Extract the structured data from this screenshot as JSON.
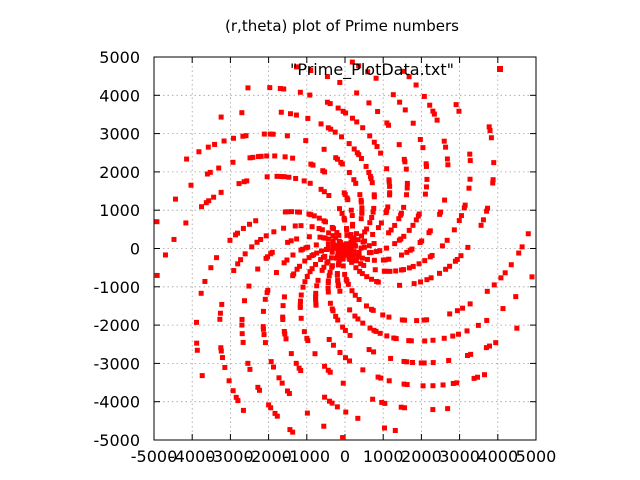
{
  "chart_data": {
    "type": "scatter",
    "title": "(r,theta) plot of Prime numbers",
    "xlabel": "",
    "ylabel": "",
    "xlim": [
      -5000,
      5000
    ],
    "ylim": [
      -5000,
      5000
    ],
    "x_ticks": [
      -5000,
      -4000,
      -3000,
      -2000,
      -1000,
      0,
      1000,
      2000,
      3000,
      4000,
      5000
    ],
    "y_ticks": [
      -5000,
      -4000,
      -3000,
      -2000,
      -1000,
      0,
      1000,
      2000,
      3000,
      4000,
      5000
    ],
    "x_tick_labels": [
      "-5000",
      "-4000",
      "-3000",
      "-2000",
      "-1000",
      "0",
      "1000",
      "2000",
      "3000",
      "4000",
      "5000"
    ],
    "y_tick_labels": [
      "-5000",
      "-4000",
      "-3000",
      "-2000",
      "-1000",
      "0",
      "1000",
      "2000",
      "3000",
      "4000",
      "5000"
    ],
    "grid": true,
    "legend_position": "top-right",
    "series": [
      {
        "name": "\"Prime_PlotData.txt\"",
        "color": "#ff0000",
        "marker": "square",
        "source": "polar points (r, theta) = (p, p) for every prime p below 5000",
        "r_limit": 5000
      }
    ]
  }
}
